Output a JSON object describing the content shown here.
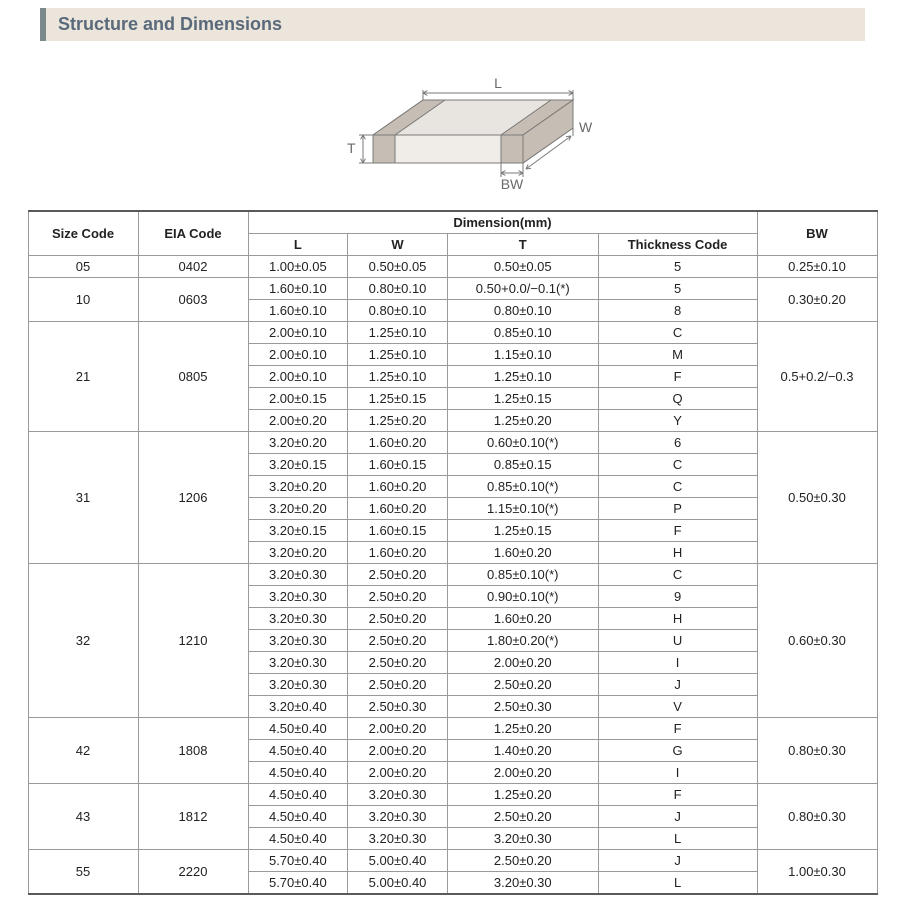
{
  "section_title": "Structure and Dimensions",
  "diagram": {
    "labels": {
      "L": "L",
      "W": "W",
      "T": "T",
      "BW": "BW"
    },
    "stroke": "#7a7a7a",
    "fill_top": "#e8e4df",
    "fill_side": "#d9d4cd",
    "fill_front": "#f0ede8",
    "band_fill": "#c6beb4",
    "text_color": "#6a6a6a",
    "font_size": 14
  },
  "table": {
    "header": {
      "size_code": "Size Code",
      "eia_code": "EIA Code",
      "dimension": "Dimension(mm)",
      "L": "L",
      "W": "W",
      "T": "T",
      "thickness_code": "Thickness  Code",
      "BW": "BW"
    },
    "groups": [
      {
        "size": "05",
        "eia": "0402",
        "bw": "0.25±0.10",
        "rows": [
          {
            "L": "1.00±0.05",
            "W": "0.50±0.05",
            "T": "0.50±0.05",
            "tc": "5"
          }
        ]
      },
      {
        "size": "10",
        "eia": "0603",
        "bw": "0.30±0.20",
        "rows": [
          {
            "L": "1.60±0.10",
            "W": "0.80±0.10",
            "T": "0.50+0.0/−0.1(*)",
            "tc": "5"
          },
          {
            "L": "1.60±0.10",
            "W": "0.80±0.10",
            "T": "0.80±0.10",
            "tc": "8"
          }
        ]
      },
      {
        "size": "21",
        "eia": "0805",
        "bw": "0.5+0.2/−0.3",
        "rows": [
          {
            "L": "2.00±0.10",
            "W": "1.25±0.10",
            "T": "0.85±0.10",
            "tc": "C"
          },
          {
            "L": "2.00±0.10",
            "W": "1.25±0.10",
            "T": "1.15±0.10",
            "tc": "M"
          },
          {
            "L": "2.00±0.10",
            "W": "1.25±0.10",
            "T": "1.25±0.10",
            "tc": "F"
          },
          {
            "L": "2.00±0.15",
            "W": "1.25±0.15",
            "T": "1.25±0.15",
            "tc": "Q"
          },
          {
            "L": "2.00±0.20",
            "W": "1.25±0.20",
            "T": "1.25±0.20",
            "tc": "Y"
          }
        ]
      },
      {
        "size": "31",
        "eia": "1206",
        "bw": "0.50±0.30",
        "rows": [
          {
            "L": "3.20±0.20",
            "W": "1.60±0.20",
            "T": "0.60±0.10(*)",
            "tc": "6"
          },
          {
            "L": "3.20±0.15",
            "W": "1.60±0.15",
            "T": "0.85±0.15",
            "tc": "C"
          },
          {
            "L": "3.20±0.20",
            "W": "1.60±0.20",
            "T": "0.85±0.10(*)",
            "tc": "C"
          },
          {
            "L": "3.20±0.20",
            "W": "1.60±0.20",
            "T": "1.15±0.10(*)",
            "tc": "P"
          },
          {
            "L": "3.20±0.15",
            "W": "1.60±0.15",
            "T": "1.25±0.15",
            "tc": "F"
          },
          {
            "L": "3.20±0.20",
            "W": "1.60±0.20",
            "T": "1.60±0.20",
            "tc": "H"
          }
        ]
      },
      {
        "size": "32",
        "eia": "1210",
        "bw": "0.60±0.30",
        "rows": [
          {
            "L": "3.20±0.30",
            "W": "2.50±0.20",
            "T": "0.85±0.10(*)",
            "tc": "C"
          },
          {
            "L": "3.20±0.30",
            "W": "2.50±0.20",
            "T": "0.90±0.10(*)",
            "tc": "9"
          },
          {
            "L": "3.20±0.30",
            "W": "2.50±0.20",
            "T": "1.60±0.20",
            "tc": "H"
          },
          {
            "L": "3.20±0.30",
            "W": "2.50±0.20",
            "T": "1.80±0.20(*)",
            "tc": "U"
          },
          {
            "L": "3.20±0.30",
            "W": "2.50±0.20",
            "T": "2.00±0.20",
            "tc": "I"
          },
          {
            "L": "3.20±0.30",
            "W": "2.50±0.20",
            "T": "2.50±0.20",
            "tc": "J"
          },
          {
            "L": "3.20±0.40",
            "W": "2.50±0.30",
            "T": "2.50±0.30",
            "tc": "V"
          }
        ]
      },
      {
        "size": "42",
        "eia": "1808",
        "bw": "0.80±0.30",
        "rows": [
          {
            "L": "4.50±0.40",
            "W": "2.00±0.20",
            "T": "1.25±0.20",
            "tc": "F"
          },
          {
            "L": "4.50±0.40",
            "W": "2.00±0.20",
            "T": "1.40±0.20",
            "tc": "G"
          },
          {
            "L": "4.50±0.40",
            "W": "2.00±0.20",
            "T": "2.00±0.20",
            "tc": "I"
          }
        ]
      },
      {
        "size": "43",
        "eia": "1812",
        "bw": "0.80±0.30",
        "rows": [
          {
            "L": "4.50±0.40",
            "W": "3.20±0.30",
            "T": "1.25±0.20",
            "tc": "F"
          },
          {
            "L": "4.50±0.40",
            "W": "3.20±0.30",
            "T": "2.50±0.20",
            "tc": "J"
          },
          {
            "L": "4.50±0.40",
            "W": "3.20±0.30",
            "T": "3.20±0.30",
            "tc": "L"
          }
        ]
      },
      {
        "size": "55",
        "eia": "2220",
        "bw": "1.00±0.30",
        "rows": [
          {
            "L": "5.70±0.40",
            "W": "5.00±0.40",
            "T": "2.50±0.20",
            "tc": "J"
          },
          {
            "L": "5.70±0.40",
            "W": "5.00±0.40",
            "T": "3.20±0.30",
            "tc": "L"
          }
        ]
      }
    ],
    "col_widths": {
      "size": 110,
      "eia": 110,
      "L": 120,
      "W": 120,
      "T": 140,
      "tc": 120,
      "bw": 120
    },
    "border_color": "#9a9a9a",
    "heavy_border_color": "#5a5a5a",
    "font_size": 13
  }
}
